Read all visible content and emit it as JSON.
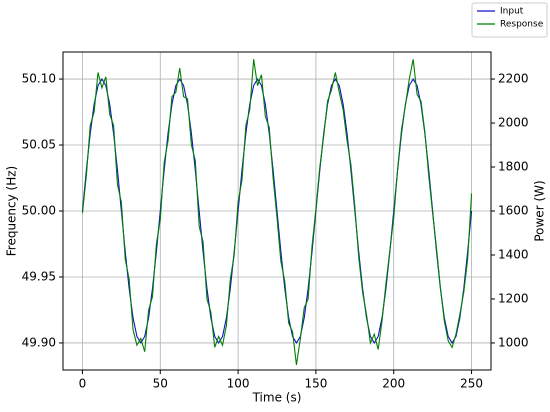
{
  "chart_data": {
    "type": "line",
    "x_label": "Time (s)",
    "y_label": "Frequency (Hz)",
    "y2_label": "Power (W)",
    "x": [
      0,
      2.5,
      5,
      7.5,
      10,
      12.5,
      15,
      17.5,
      20,
      22.5,
      25,
      27.5,
      30,
      32.5,
      35,
      37.5,
      40,
      42.5,
      45,
      47.5,
      50,
      52.5,
      55,
      57.5,
      60,
      62.5,
      65,
      67.5,
      70,
      72.5,
      75,
      77.5,
      80,
      82.5,
      85,
      87.5,
      90,
      92.5,
      95,
      97.5,
      100,
      102.5,
      105,
      107.5,
      110,
      112.5,
      115,
      117.5,
      120,
      122.5,
      125,
      127.5,
      130,
      132.5,
      135,
      137.5,
      140,
      142.5,
      145,
      147.5,
      150,
      152.5,
      155,
      157.5,
      160,
      162.5,
      165,
      167.5,
      170,
      172.5,
      175,
      177.5,
      180,
      182.5,
      185,
      187.5,
      190,
      192.5,
      195,
      197.5,
      200,
      202.5,
      205,
      207.5,
      210,
      212.5,
      215,
      217.5,
      220,
      222.5,
      225,
      227.5,
      230,
      232.5,
      235,
      237.5,
      240,
      242.5,
      245,
      247.5,
      250
    ],
    "series": [
      {
        "name": "Input",
        "color": "#1010c8",
        "values": [
          50,
          50.0309,
          50.0588,
          50.0809,
          50.0951,
          50.1,
          50.0951,
          50.0809,
          50.0588,
          50.0309,
          50,
          49.9691,
          49.9412,
          49.9191,
          49.9049,
          49.9,
          49.9049,
          49.9191,
          49.9412,
          49.9691,
          50,
          50.0309,
          50.0588,
          50.0809,
          50.0951,
          50.1,
          50.0951,
          50.0809,
          50.0588,
          50.0309,
          50,
          49.9691,
          49.9412,
          49.9191,
          49.9049,
          49.9,
          49.9049,
          49.9191,
          49.9412,
          49.9691,
          50,
          50.0309,
          50.0588,
          50.0809,
          50.0951,
          50.1,
          50.0951,
          50.0809,
          50.0588,
          50.0309,
          50,
          49.9691,
          49.9412,
          49.9191,
          49.9049,
          49.9,
          49.9049,
          49.9191,
          49.9412,
          49.9691,
          50,
          50.0309,
          50.0588,
          50.0809,
          50.0951,
          50.1,
          50.0951,
          50.0809,
          50.0588,
          50.0309,
          50,
          49.9691,
          49.9412,
          49.9191,
          49.9049,
          49.9,
          49.9049,
          49.9191,
          49.9412,
          49.9691,
          50,
          50.0309,
          50.0588,
          50.0809,
          50.0951,
          50.1,
          50.0951,
          50.0809,
          50.0588,
          50.0309,
          50,
          49.9691,
          49.9412,
          49.9191,
          49.9049,
          49.9,
          49.9049,
          49.9191,
          49.9412,
          49.9691,
          50
        ]
      },
      {
        "name": "Response",
        "color": "#008000",
        "axis": "y2",
        "values": [
          1590,
          1760,
          1990,
          2050,
          2230,
          2160,
          2210,
          2040,
          1990,
          1720,
          1640,
          1380,
          1290,
          1060,
          990,
          1020,
          960,
          1150,
          1210,
          1450,
          1560,
          1820,
          1920,
          2120,
          2140,
          2250,
          2120,
          2110,
          1900,
          1830,
          1530,
          1460,
          1200,
          1140,
          980,
          1030,
          990,
          1080,
          1290,
          1400,
          1640,
          1740,
          1990,
          2060,
          2290,
          2170,
          2220,
          2030,
          1980,
          1750,
          1570,
          1370,
          1280,
          1090,
          1050,
          900,
          1020,
          1160,
          1200,
          1440,
          1610,
          1800,
          1940,
          2100,
          2150,
          2230,
          2140,
          2060,
          1920,
          1810,
          1620,
          1390,
          1230,
          1130,
          1000,
          1040,
          970,
          1100,
          1270,
          1420,
          1570,
          1790,
          1970,
          2080,
          2200,
          2290,
          2130,
          2100,
          1960,
          1760,
          1590,
          1430,
          1250,
          1100,
          1010,
          980,
          1040,
          1130,
          1230,
          1380,
          1680
        ]
      }
    ],
    "xlim": [
      -12.5,
      262.5
    ],
    "xticks": [
      0,
      50,
      100,
      150,
      200,
      250
    ],
    "ylim": [
      49.8795,
      50.1205
    ],
    "yticks": [
      {
        "value": 49.9,
        "label": "49.90"
      },
      49.95,
      {
        "value": 50,
        "label": "50.00"
      },
      50.05,
      {
        "value": 50.1,
        "label": "50.10"
      }
    ],
    "y2lim": [
      877,
      2323
    ],
    "y2ticks": [
      1000,
      1200,
      1400,
      1600,
      1800,
      2000,
      2200
    ],
    "grid": true,
    "legend": "outside-top-right"
  }
}
